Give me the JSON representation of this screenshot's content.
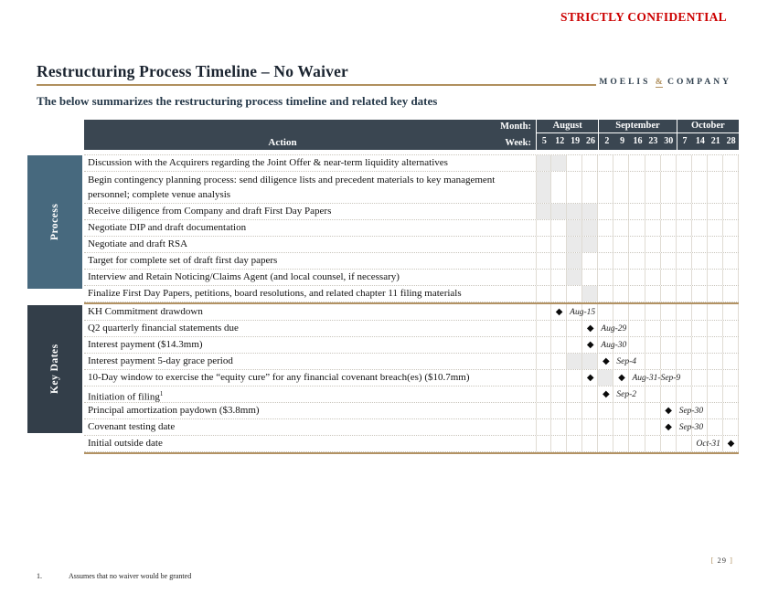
{
  "page": {
    "confidential": "STRICTLY CONFIDENTIAL",
    "title": "Restructuring Process Timeline – No Waiver",
    "subtitle": "The below summarizes the restructuring process timeline and related key dates",
    "logo": {
      "part1": "MOELIS",
      "amp": "&",
      "part2": "COMPANY"
    },
    "footnote_marker": "1.",
    "footnote_text": "Assumes that no waiver would be granted",
    "page_number": {
      "left_bracket": "[",
      "number": "29",
      "right_bracket": "]"
    }
  },
  "colors": {
    "confidential_red": "#CC0000",
    "header_navy": "#3A4651",
    "process_sidebar": "#47697E",
    "key_dates_sidebar": "#333E49",
    "accent_gold": "#B0905E",
    "cell_shade": "#EAEAEA"
  },
  "timeline": {
    "month_label": "Month:",
    "week_label": "Week:",
    "action_label": "Action",
    "months": [
      {
        "label": "August",
        "weeks": [
          "5",
          "12",
          "19",
          "26"
        ]
      },
      {
        "label": "September",
        "weeks": [
          "2",
          "9",
          "16",
          "23",
          "30"
        ]
      },
      {
        "label": "October",
        "weeks": [
          "7",
          "14",
          "21",
          "28"
        ]
      }
    ],
    "sections": [
      {
        "id": "process",
        "label": "Process",
        "rows": [
          {
            "action": "Discussion with the Acquirers regarding the Joint Offer & near-term liquidity alternatives",
            "bars": [
              1,
              2
            ]
          },
          {
            "action": "Begin contingency planning process: send diligence lists and precedent materials to key management personnel; complete venue analysis",
            "bars": [
              1
            ],
            "tall": true
          },
          {
            "action": "Receive diligence from Company and draft First Day Papers",
            "bars": [
              1,
              2,
              3,
              4
            ]
          },
          {
            "action": "Negotiate DIP and draft documentation",
            "bars": [
              3,
              4
            ]
          },
          {
            "action": "Negotiate and draft RSA",
            "bars": [
              3,
              4
            ]
          },
          {
            "action": "Target for complete set of draft first day papers",
            "bars": [
              3
            ]
          },
          {
            "action": "Interview and Retain Noticing/Claims Agent (and local counsel, if necessary)",
            "bars": [
              3
            ]
          },
          {
            "action": "Finalize First Day Papers, petitions, board resolutions, and related chapter 11 filing materials",
            "bars": [
              4
            ]
          }
        ]
      },
      {
        "id": "key_dates",
        "label": "Key Dates",
        "rows": [
          {
            "action": "KH Commitment drawdown",
            "markers": [
              2
            ],
            "label": {
              "text": "Aug-15",
              "side": "right",
              "col": 2
            }
          },
          {
            "action": "Q2 quarterly financial statements due",
            "markers": [
              4
            ],
            "label": {
              "text": "Aug-29",
              "side": "right",
              "col": 4
            }
          },
          {
            "action": "Interest payment ($14.3mm)",
            "markers": [
              4
            ],
            "label": {
              "text": "Aug-30",
              "side": "right",
              "col": 4
            }
          },
          {
            "action": "Interest payment 5-day grace period",
            "bars": [
              3,
              4
            ],
            "markers": [
              5
            ],
            "label": {
              "text": "Sep-4",
              "side": "right",
              "col": 5
            }
          },
          {
            "action": "10-Day window to exercise the “equity cure” for any financial covenant breach(es) ($10.7mm)",
            "bars": [
              5
            ],
            "markers": [
              4,
              6
            ],
            "label": {
              "text": "Aug-31-Sep-9",
              "side": "right",
              "col": 6
            }
          },
          {
            "action": "Initiation of filing",
            "sup": "1",
            "markers": [
              5
            ],
            "label": {
              "text": "Sep-2",
              "side": "right",
              "col": 5
            }
          },
          {
            "action": "Principal amortization paydown ($3.8mm)",
            "markers": [
              9
            ],
            "label": {
              "text": "Sep-30",
              "side": "right",
              "col": 9
            }
          },
          {
            "action": "Covenant testing date",
            "markers": [
              9
            ],
            "label": {
              "text": "Sep-30",
              "side": "right",
              "col": 9
            }
          },
          {
            "action": "Initial outside date",
            "markers": [
              13
            ],
            "label": {
              "text": "Oct-31",
              "side": "left",
              "col": 13
            }
          }
        ]
      }
    ]
  }
}
